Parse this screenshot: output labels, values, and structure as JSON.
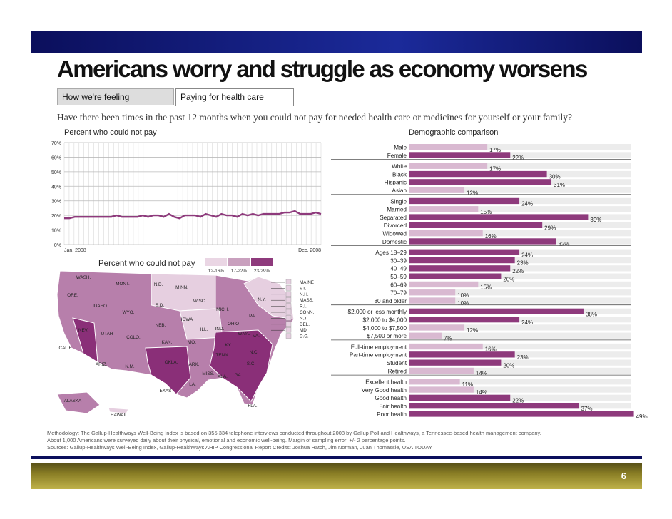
{
  "title": "Americans worry and struggle as economy worsens",
  "tabs": [
    {
      "label": "How we're feeling"
    },
    {
      "label": "Paying for health care"
    }
  ],
  "question": "Have there been times in the past 12 months when you could not pay for needed health care or medicines for yourself or your family?",
  "line_chart": {
    "subtitle": "Percent who could not pay",
    "y_ticks": [
      "70%",
      "60%",
      "50%",
      "40%",
      "30%",
      "20%",
      "10%",
      "0%"
    ],
    "x_start": "Jan. 2008",
    "x_end": "Dec. 2008"
  },
  "map": {
    "subtitle": "Percent who could not pay",
    "legend": [
      "12-16%",
      "17-22%",
      "23-29%"
    ],
    "legend_colors": [
      "#ead6e4",
      "#c9a0be",
      "#8e3a7c"
    ],
    "states": [
      "WASH.",
      "MONT.",
      "N.D.",
      "MINN.",
      "ORE.",
      "IDAHO",
      "WYO.",
      "S.D.",
      "WISC.",
      "MICH.",
      "N.Y.",
      "NEB.",
      "IOWA",
      "PA.",
      "NEV.",
      "UTAH",
      "COLO.",
      "ILL.",
      "IND.",
      "OHIO",
      "W.VA.",
      "VA.",
      "CALIF.",
      "KAN.",
      "MO.",
      "KY.",
      "N.C.",
      "TENN.",
      "ARIZ.",
      "N.M.",
      "OKLA.",
      "ARK.",
      "S.C.",
      "MISS.",
      "ALA.",
      "GA.",
      "LA.",
      "TEXAS",
      "FLA.",
      "ALASKA",
      "HAWAII"
    ],
    "ne_states": [
      "MAINE",
      "VT.",
      "N.H.",
      "MASS.",
      "R.I.",
      "CONN.",
      "N.J.",
      "DEL.",
      "MD.",
      "D.C."
    ]
  },
  "chart_data": {
    "type": "bar",
    "title": "Demographic comparison",
    "groups": [
      {
        "categories": [
          "Male",
          "Female"
        ],
        "values": [
          17,
          22
        ]
      },
      {
        "categories": [
          "White",
          "Black",
          "Hispanic",
          "Asian"
        ],
        "values": [
          17,
          30,
          31,
          12
        ]
      },
      {
        "categories": [
          "Single",
          "Married",
          "Separated",
          "Divorced",
          "Widowed",
          "Domestic"
        ],
        "values": [
          24,
          15,
          39,
          29,
          16,
          32
        ]
      },
      {
        "categories": [
          "Ages 18–29",
          "30–39",
          "40–49",
          "50–59",
          "60–69",
          "70–79",
          "80 and older"
        ],
        "values": [
          24,
          23,
          22,
          20,
          15,
          10,
          10
        ]
      },
      {
        "categories": [
          "$2,000 or less monthly",
          "$2,000 to $4,000",
          "$4,000 to $7,500",
          "$7,500 or more"
        ],
        "values": [
          38,
          24,
          12,
          7
        ]
      },
      {
        "categories": [
          "Full-time employment",
          "Part-time employment",
          "Student",
          "Retired"
        ],
        "values": [
          16,
          23,
          20,
          14
        ]
      },
      {
        "categories": [
          "Excellent health",
          "Very Good health",
          "Good health",
          "Fair health",
          "Poor health"
        ],
        "values": [
          11,
          14,
          22,
          37,
          49
        ]
      }
    ],
    "line_series": {
      "name": "",
      "x_range": [
        "Jan. 2008",
        "Dec. 2008"
      ],
      "ylim": [
        0,
        70
      ],
      "values": [
        18,
        18,
        19,
        19,
        19,
        19,
        19,
        19,
        19,
        19,
        20,
        19,
        19,
        19,
        19,
        20,
        19,
        20,
        20,
        19,
        21,
        19,
        18,
        20,
        20,
        20,
        19,
        21,
        20,
        19,
        21,
        20,
        20,
        19,
        21,
        20,
        21,
        20,
        21,
        21,
        21,
        21,
        22,
        22,
        23,
        21,
        21,
        21,
        22,
        21
      ]
    }
  },
  "notes": {
    "line1": "Methodology: The Gallup-Healthways Well-Being Index is based on 355,334 telephone interviews conducted throughout 2008 by Gallup Poll and Healthways, a Tennessee-based health management company.",
    "line2": "About 1,000 Americans were surveyed daily about their physical, emotional and economic well-being. Margin of sampling error: +/- 2 percentage points.",
    "line3": "Sources: Gallup-Healthways Well-Being Index, Gallup-Healthways AHIP Congressional Report   Credits: Joshua Hatch, Jim Norman, Juan Thomassie, USA TODAY"
  },
  "page_number": "6",
  "colors": {
    "low": "#e6cfe0",
    "mid": "#b77fab",
    "high": "#8a2f78",
    "bar": "#8e3a7c",
    "bar_light": "#d9b9d1"
  }
}
